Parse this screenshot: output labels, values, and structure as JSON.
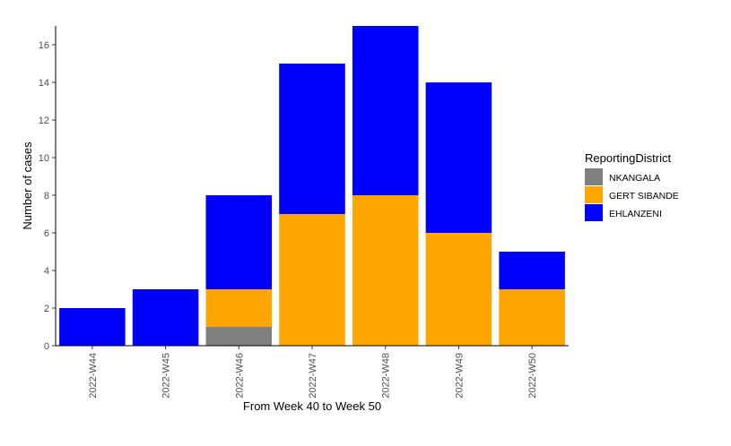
{
  "chart_data": {
    "type": "bar",
    "stacked": true,
    "title": "",
    "xlabel": "From Week 40 to Week 50",
    "ylabel": "Number of cases",
    "categories": [
      "2022-W44",
      "2022-W45",
      "2022-W46",
      "2022-W47",
      "2022-W48",
      "2022-W49",
      "2022-W50"
    ],
    "ylim": [
      0,
      17
    ],
    "yticks": [
      0,
      2,
      4,
      6,
      8,
      10,
      12,
      14,
      16
    ],
    "grid": false,
    "legend": {
      "title": "ReportingDistrict",
      "position": "right"
    },
    "series": [
      {
        "name": "NKANGALA",
        "color": "#808080",
        "values": [
          0,
          0,
          1,
          0,
          0,
          0,
          0
        ]
      },
      {
        "name": "GERT SIBANDE",
        "color": "#FFA500",
        "values": [
          0,
          0,
          2,
          7,
          8,
          6,
          3
        ]
      },
      {
        "name": "EHLANZENI",
        "color": "#0000FF",
        "values": [
          2,
          3,
          5,
          8,
          9,
          8,
          2
        ]
      }
    ]
  }
}
